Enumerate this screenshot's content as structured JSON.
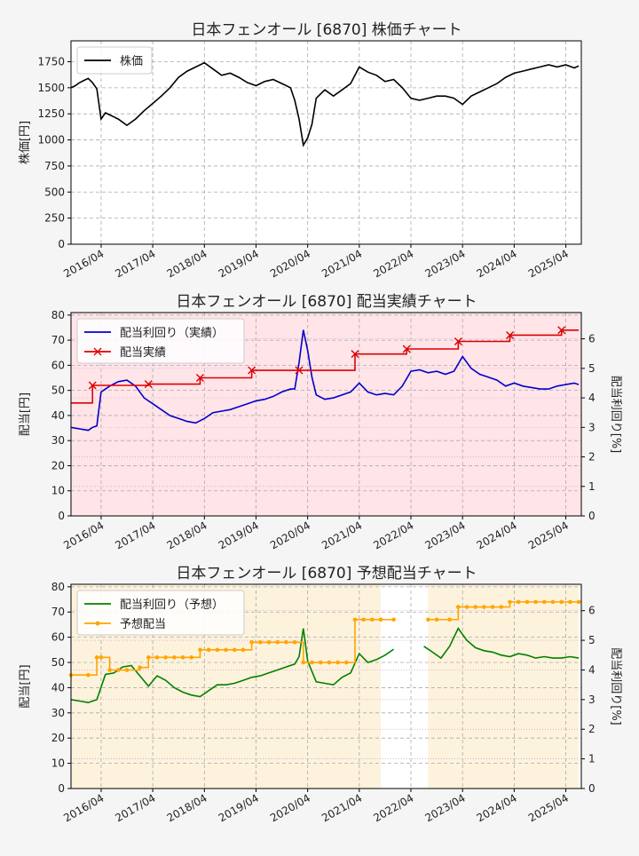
{
  "colors": {
    "price_line": "#000000",
    "yield_actual": "#0000cc",
    "div_actual": "#dd0000",
    "yield_forecast": "#008000",
    "div_forecast": "#ffa500",
    "fill_actual": "#ffe4e8",
    "fill_forecast": "#fdf2dc",
    "grid": "#aaaaaa"
  },
  "x_tick_labels": [
    "2016/04",
    "2017/04",
    "2018/04",
    "2019/04",
    "2020/04",
    "2021/04",
    "2022/04",
    "2023/04",
    "2024/04",
    "2025/04"
  ],
  "chart_data": [
    {
      "type": "line",
      "title": "日本フェンオール [6870]  株価チャート",
      "ylabel": "株価[円]",
      "ylim": [
        0,
        1950
      ],
      "yticks": [
        0,
        250,
        500,
        750,
        1000,
        1250,
        1500,
        1750
      ],
      "grid": true,
      "legend_position": "top-left",
      "series": [
        {
          "name": "株価",
          "x": [
            "2015-09",
            "2015-10",
            "2015-11",
            "2015-12",
            "2016-01",
            "2016-02",
            "2016-03",
            "2016-04",
            "2016-05",
            "2016-06",
            "2016-08",
            "2016-10",
            "2016-12",
            "2017-02",
            "2017-04",
            "2017-06",
            "2017-08",
            "2017-10",
            "2017-12",
            "2018-02",
            "2018-04",
            "2018-06",
            "2018-08",
            "2018-10",
            "2018-12",
            "2019-02",
            "2019-04",
            "2019-06",
            "2019-08",
            "2019-10",
            "2019-12",
            "2020-01",
            "2020-02",
            "2020-03",
            "2020-04",
            "2020-05",
            "2020-06",
            "2020-08",
            "2020-10",
            "2020-12",
            "2021-02",
            "2021-04",
            "2021-06",
            "2021-08",
            "2021-10",
            "2021-12",
            "2022-02",
            "2022-04",
            "2022-06",
            "2022-08",
            "2022-10",
            "2022-12",
            "2023-02",
            "2023-04",
            "2023-06",
            "2023-08",
            "2023-10",
            "2023-12",
            "2024-02",
            "2024-04",
            "2024-06",
            "2024-08",
            "2024-10",
            "2024-12",
            "2025-02",
            "2025-04",
            "2025-06",
            "2025-07"
          ],
          "values": [
            1500,
            1520,
            1550,
            1570,
            1590,
            1550,
            1490,
            1200,
            1260,
            1240,
            1200,
            1140,
            1200,
            1280,
            1350,
            1420,
            1500,
            1600,
            1660,
            1700,
            1740,
            1680,
            1620,
            1640,
            1600,
            1550,
            1520,
            1560,
            1580,
            1540,
            1500,
            1380,
            1200,
            950,
            1020,
            1150,
            1400,
            1480,
            1420,
            1480,
            1540,
            1700,
            1650,
            1620,
            1560,
            1580,
            1500,
            1400,
            1380,
            1400,
            1420,
            1420,
            1400,
            1340,
            1420,
            1460,
            1500,
            1540,
            1600,
            1640,
            1660,
            1680,
            1700,
            1720,
            1700,
            1720,
            1690,
            1710
          ]
        }
      ]
    },
    {
      "type": "line",
      "title": "日本フェンオール [6870]  配当実績チャート",
      "ylabel": "配当[円]",
      "y2label": "配当利回り[%]",
      "ylim": [
        0,
        81
      ],
      "yticks": [
        0,
        10,
        20,
        30,
        40,
        50,
        60,
        70,
        80
      ],
      "y2lim": [
        0,
        6.89
      ],
      "y2ticks": [
        0,
        1,
        2,
        3,
        4,
        5,
        6
      ],
      "grid": true,
      "legend_position": "top-left",
      "series": [
        {
          "name": "配当利回り（実績）",
          "axis": "right",
          "x": [
            "2015-09",
            "2015-11",
            "2016-01",
            "2016-02",
            "2016-03",
            "2016-04",
            "2016-05",
            "2016-06",
            "2016-08",
            "2016-10",
            "2016-12",
            "2017-02",
            "2017-04",
            "2017-06",
            "2017-08",
            "2017-10",
            "2017-12",
            "2018-02",
            "2018-04",
            "2018-06",
            "2018-08",
            "2018-10",
            "2018-12",
            "2019-02",
            "2019-04",
            "2019-06",
            "2019-08",
            "2019-10",
            "2019-12",
            "2020-01",
            "2020-02",
            "2020-03",
            "2020-04",
            "2020-05",
            "2020-06",
            "2020-08",
            "2020-10",
            "2020-12",
            "2021-02",
            "2021-04",
            "2021-06",
            "2021-08",
            "2021-10",
            "2021-12",
            "2022-02",
            "2022-04",
            "2022-06",
            "2022-08",
            "2022-10",
            "2022-12",
            "2023-02",
            "2023-04",
            "2023-06",
            "2023-08",
            "2023-10",
            "2023-12",
            "2024-02",
            "2024-04",
            "2024-06",
            "2024-08",
            "2024-10",
            "2024-12",
            "2025-02",
            "2025-04",
            "2025-06",
            "2025-07"
          ],
          "values": [
            3.0,
            2.95,
            2.9,
            3.0,
            3.05,
            4.2,
            4.3,
            4.4,
            4.55,
            4.6,
            4.4,
            4.0,
            3.8,
            3.6,
            3.4,
            3.3,
            3.2,
            3.15,
            3.3,
            3.5,
            3.55,
            3.6,
            3.7,
            3.8,
            3.9,
            3.95,
            4.05,
            4.2,
            4.3,
            4.3,
            5.2,
            6.3,
            5.6,
            4.7,
            4.1,
            3.95,
            4.0,
            4.1,
            4.2,
            4.5,
            4.2,
            4.1,
            4.15,
            4.1,
            4.4,
            4.9,
            4.95,
            4.85,
            4.9,
            4.8,
            4.9,
            5.4,
            5.0,
            4.8,
            4.7,
            4.6,
            4.4,
            4.5,
            4.4,
            4.35,
            4.3,
            4.3,
            4.4,
            4.45,
            4.5,
            4.45
          ]
        },
        {
          "name": "配当実績",
          "axis": "left",
          "step": true,
          "x": [
            "2016-02",
            "2017-03",
            "2018-03",
            "2019-03",
            "2020-02",
            "2021-03",
            "2022-03",
            "2023-03",
            "2024-03",
            "2025-03",
            "2025-07"
          ],
          "values": [
            52,
            52.5,
            55,
            58,
            58,
            64.5,
            66.5,
            69.5,
            72,
            74,
            74
          ],
          "start_value": 45
        }
      ]
    },
    {
      "type": "line",
      "title": "日本フェンオール [6870]  予想配当チャート",
      "ylabel": "配当[円]",
      "y2label": "配当利回り[%]",
      "ylim": [
        0,
        81
      ],
      "yticks": [
        0,
        10,
        20,
        30,
        40,
        50,
        60,
        70,
        80
      ],
      "y2lim": [
        0,
        6.89
      ],
      "y2ticks": [
        0,
        1,
        2,
        3,
        4,
        5,
        6
      ],
      "grid": true,
      "legend_position": "top-left",
      "series": [
        {
          "name": "配当利回り（予想）",
          "axis": "right",
          "x": [
            "2015-09",
            "2015-11",
            "2016-01",
            "2016-03",
            "2016-05",
            "2016-07",
            "2016-09",
            "2016-11",
            "2017-01",
            "2017-03",
            "2017-05",
            "2017-07",
            "2017-09",
            "2017-11",
            "2018-01",
            "2018-03",
            "2018-05",
            "2018-07",
            "2018-09",
            "2018-11",
            "2019-01",
            "2019-03",
            "2019-05",
            "2019-07",
            "2019-09",
            "2019-11",
            "2020-01",
            "2020-02",
            "2020-03",
            "2020-04",
            "2020-06",
            "2020-08",
            "2020-10",
            "2020-12",
            "2021-02",
            "2021-04",
            "2021-06",
            "2021-08",
            "2021-10",
            "2021-12",
            "null",
            "2022-07",
            "2022-09",
            "2022-11",
            "2023-01",
            "2023-03",
            "2023-05",
            "2023-07",
            "2023-09",
            "2023-11",
            "2024-01",
            "2024-03",
            "2024-05",
            "2024-07",
            "2024-09",
            "2024-11",
            "2025-01",
            "2025-03",
            "2025-05",
            "2025-07"
          ],
          "values": [
            3.0,
            2.95,
            2.9,
            3.0,
            3.85,
            3.9,
            4.1,
            4.15,
            3.8,
            3.45,
            3.8,
            3.65,
            3.4,
            3.25,
            3.15,
            3.1,
            3.3,
            3.5,
            3.5,
            3.55,
            3.65,
            3.75,
            3.8,
            3.9,
            4.0,
            4.1,
            4.2,
            4.45,
            5.4,
            4.3,
            3.6,
            3.55,
            3.5,
            3.75,
            3.9,
            4.55,
            4.25,
            4.35,
            4.5,
            4.7,
            null,
            4.8,
            4.6,
            4.4,
            4.8,
            5.4,
            5.0,
            4.75,
            4.65,
            4.6,
            4.5,
            4.45,
            4.55,
            4.5,
            4.4,
            4.45,
            4.4,
            4.4,
            4.45,
            4.4
          ]
        },
        {
          "name": "予想配当",
          "axis": "left",
          "step": true,
          "markers": true,
          "x": [
            "2015-09",
            "2016-01",
            "2016-03",
            "2016-04",
            "2016-06",
            "2016-08",
            "2016-10",
            "2017-01",
            "2017-03",
            "2017-05",
            "2017-07",
            "2017-09",
            "2017-11",
            "2018-01",
            "2018-03",
            "2018-05",
            "2018-07",
            "2018-09",
            "2018-11",
            "2019-01",
            "2019-03",
            "2019-05",
            "2019-07",
            "2019-09",
            "2019-11",
            "2020-01",
            "2020-03",
            "2020-05",
            "2020-07",
            "2020-09",
            "2020-11",
            "2021-01",
            "2021-03",
            "2021-05",
            "2021-07",
            "2021-09",
            "2021-12",
            "null",
            "2022-08",
            "2022-10",
            "2023-01",
            "2023-03",
            "2023-05",
            "2023-07",
            "2023-09",
            "2023-11",
            "2024-01",
            "2024-03",
            "2024-05",
            "2024-07",
            "2024-09",
            "2024-11",
            "2025-01",
            "2025-03",
            "2025-05",
            "2025-07"
          ],
          "values": [
            45,
            45,
            52,
            52,
            47,
            47,
            47,
            48,
            52,
            52,
            52,
            52,
            52,
            52,
            55,
            55,
            55,
            55,
            55,
            55,
            58,
            58,
            58,
            58,
            58,
            58,
            50,
            50,
            50,
            50,
            50,
            50,
            67,
            67,
            67,
            67,
            67,
            null,
            67,
            67,
            67,
            72,
            72,
            72,
            72,
            72,
            72,
            74,
            74,
            74,
            74,
            74,
            74,
            74,
            74,
            74
          ]
        }
      ],
      "shaded_ranges": [
        [
          "2015-09",
          "2021-09"
        ],
        [
          "2022-08",
          "2025-07"
        ]
      ]
    }
  ]
}
